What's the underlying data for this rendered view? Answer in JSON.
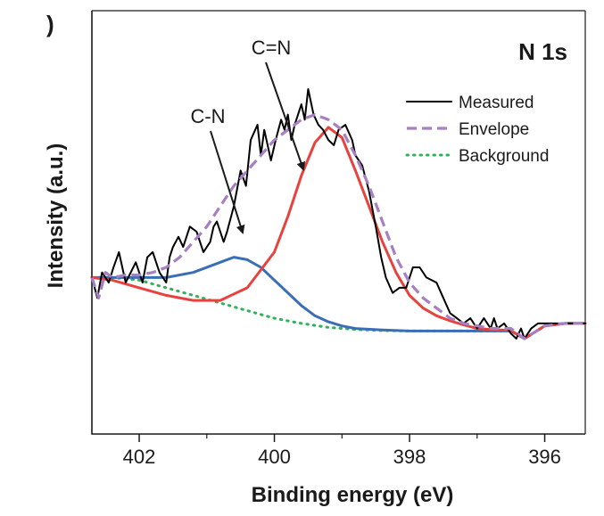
{
  "panel_letter": ")",
  "colors": {
    "measured": "#000000",
    "envelope": "#a77fc3",
    "background": "#2fb35a",
    "cn_peak": "#3a6fb5",
    "c_eq_n_peak": "#e8423f"
  },
  "chart_data": {
    "type": "line",
    "title": "N 1s",
    "xlabel": "Binding energy (eV)",
    "ylabel": "Intensity (a.u.)",
    "xlim": [
      402.7,
      395.4
    ],
    "ylim": [
      0,
      1
    ],
    "x_reversed": true,
    "xticks": [
      402,
      400,
      398,
      396
    ],
    "xtick_labels": [
      "402",
      "400",
      "398",
      "396"
    ],
    "grid": false,
    "legend_position": "top-right",
    "legend": [
      {
        "key": "measured",
        "label": "Measured",
        "style": "solid"
      },
      {
        "key": "envelope",
        "label": "Envelope",
        "style": "dashed"
      },
      {
        "key": "background",
        "label": "Background",
        "style": "dotted"
      }
    ],
    "annotations": [
      {
        "label": "C=N",
        "points_to": "c_eq_n"
      },
      {
        "label": "C-N",
        "points_to": "c_n"
      }
    ],
    "series": [
      {
        "key": "measured",
        "name": "Measured",
        "x": [
          402.7,
          402.62,
          402.55,
          402.45,
          402.38,
          402.3,
          402.2,
          402.05,
          401.95,
          401.88,
          401.8,
          401.7,
          401.6,
          401.55,
          401.5,
          401.42,
          401.35,
          401.25,
          401.15,
          401.05,
          400.95,
          400.9,
          400.85,
          400.75,
          400.7,
          400.6,
          400.5,
          400.42,
          400.35,
          400.25,
          400.2,
          400.15,
          400.05,
          399.98,
          399.9,
          399.85,
          399.8,
          399.75,
          399.7,
          399.6,
          399.55,
          399.5,
          399.42,
          399.35,
          399.28,
          399.2,
          399.12,
          399.05,
          398.95,
          398.85,
          398.8,
          398.7,
          398.6,
          398.5,
          398.42,
          398.35,
          398.25,
          398.15,
          398.05,
          397.95,
          397.85,
          397.75,
          397.6,
          397.5,
          397.4,
          397.3,
          397.2,
          397.1,
          397.0,
          396.9,
          396.8,
          396.75,
          396.7,
          396.6,
          396.5,
          396.42,
          396.35,
          396.3,
          396.2,
          396.1,
          396.0,
          395.8,
          395.6,
          395.4
        ],
        "y": [
          0.68,
          0.64,
          0.69,
          0.67,
          0.7,
          0.73,
          0.67,
          0.71,
          0.67,
          0.72,
          0.73,
          0.69,
          0.67,
          0.72,
          0.74,
          0.76,
          0.74,
          0.78,
          0.77,
          0.73,
          0.75,
          0.78,
          0.79,
          0.75,
          0.77,
          0.82,
          0.89,
          0.86,
          0.95,
          0.98,
          0.92,
          0.97,
          0.91,
          0.95,
          0.99,
          0.97,
          1.0,
          0.95,
          0.98,
          1.02,
          0.99,
          1.05,
          1.0,
          0.98,
          0.97,
          0.95,
          0.94,
          0.97,
          0.98,
          0.95,
          0.92,
          0.9,
          0.85,
          0.78,
          0.72,
          0.68,
          0.65,
          0.66,
          0.66,
          0.7,
          0.7,
          0.68,
          0.67,
          0.64,
          0.61,
          0.6,
          0.59,
          0.6,
          0.58,
          0.6,
          0.58,
          0.6,
          0.58,
          0.59,
          0.57,
          0.56,
          0.58,
          0.56,
          0.58,
          0.59,
          0.59,
          0.59,
          0.59,
          0.59
        ]
      },
      {
        "key": "envelope",
        "name": "Envelope",
        "x": [
          402.7,
          402.6,
          402.5,
          402.4,
          402.2,
          402.0,
          401.8,
          401.6,
          401.4,
          401.2,
          401.0,
          400.8,
          400.6,
          400.4,
          400.2,
          400.0,
          399.8,
          399.6,
          399.4,
          399.2,
          399.0,
          398.8,
          398.6,
          398.4,
          398.2,
          398.0,
          397.8,
          397.6,
          397.4,
          397.2,
          397.0,
          396.8,
          396.5,
          396.3,
          396.0,
          395.7,
          395.4
        ],
        "y": [
          0.68,
          0.64,
          0.69,
          0.68,
          0.685,
          0.685,
          0.69,
          0.7,
          0.72,
          0.75,
          0.78,
          0.82,
          0.86,
          0.89,
          0.92,
          0.95,
          0.97,
          0.99,
          1.0,
          0.99,
          0.97,
          0.92,
          0.86,
          0.79,
          0.72,
          0.67,
          0.64,
          0.62,
          0.6,
          0.59,
          0.585,
          0.58,
          0.58,
          0.56,
          0.585,
          0.59,
          0.59
        ]
      },
      {
        "key": "background",
        "name": "Background",
        "x": [
          402.7,
          402.4,
          402.0,
          401.6,
          401.2,
          400.8,
          400.4,
          400.0,
          399.6,
          399.2,
          398.8,
          398.4,
          398.0,
          397.6,
          397.2,
          396.8,
          396.5,
          396.3,
          396.0,
          395.7,
          395.4
        ],
        "y": [
          0.68,
          0.68,
          0.675,
          0.66,
          0.645,
          0.63,
          0.615,
          0.6,
          0.59,
          0.582,
          0.578,
          0.576,
          0.575,
          0.575,
          0.575,
          0.575,
          0.575,
          0.56,
          0.585,
          0.59,
          0.59
        ]
      },
      {
        "key": "c_n",
        "name": "C-N",
        "x": [
          402.7,
          402.4,
          402.0,
          401.6,
          401.2,
          400.8,
          400.6,
          400.4,
          400.2,
          400.0,
          399.8,
          399.6,
          399.4,
          399.2,
          399.0,
          398.8,
          398.4,
          398.0,
          397.6,
          397.2,
          396.8,
          396.5,
          396.3,
          396.0,
          395.7,
          395.4
        ],
        "y": [
          0.68,
          0.68,
          0.68,
          0.68,
          0.69,
          0.71,
          0.72,
          0.715,
          0.7,
          0.675,
          0.65,
          0.625,
          0.605,
          0.593,
          0.585,
          0.58,
          0.577,
          0.575,
          0.575,
          0.575,
          0.575,
          0.575,
          0.56,
          0.585,
          0.59,
          0.59
        ]
      },
      {
        "key": "c_eq_n",
        "name": "C=N",
        "x": [
          402.7,
          402.4,
          402.0,
          401.6,
          401.2,
          400.8,
          400.4,
          400.0,
          399.8,
          399.6,
          399.4,
          399.2,
          399.0,
          398.8,
          398.6,
          398.4,
          398.2,
          398.0,
          397.8,
          397.6,
          397.4,
          397.2,
          397.0,
          396.8,
          396.5,
          396.3,
          396.0,
          395.7,
          395.4
        ],
        "y": [
          0.68,
          0.675,
          0.66,
          0.645,
          0.635,
          0.635,
          0.66,
          0.73,
          0.8,
          0.88,
          0.945,
          0.975,
          0.955,
          0.89,
          0.82,
          0.75,
          0.69,
          0.645,
          0.62,
          0.605,
          0.595,
          0.587,
          0.58,
          0.578,
          0.576,
          0.56,
          0.585,
          0.59,
          0.59
        ]
      }
    ]
  }
}
